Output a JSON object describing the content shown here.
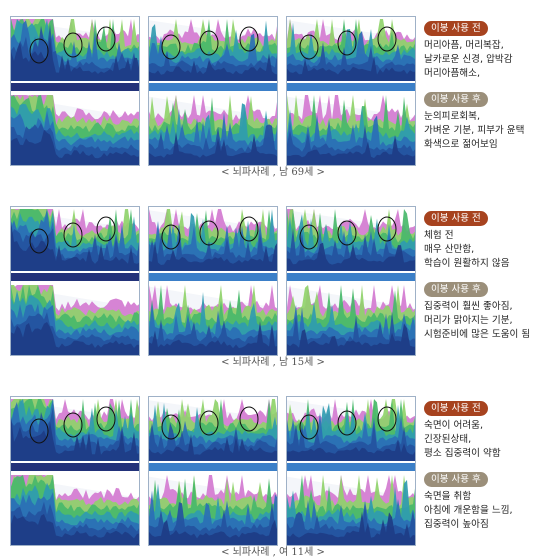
{
  "cases": [
    {
      "before_label": "이봉 사용 전",
      "before_text": "머리아픔, 머리복잡,\n날카로운 신경, 압박감\n머리아픔해소,",
      "after_label": "이봉 사용 후",
      "after_text": "눈의피로회복,\n가벼운 기분,  피부가 윤택\n화색으로 젊어보임",
      "caption": "< 뇌파사례 , 남 69세 >"
    },
    {
      "before_label": "이봉 사용 전",
      "before_text": "체험 전\n매우 산만함,\n학습이 원활하지 않음",
      "after_label": "이봉 사용 후",
      "after_text": "집중력이 훨씬 좋아짐,\n머리가 맑아지는 기분,\n시험준비에 많은 도움이 됨",
      "caption": "< 뇌파사례 , 남 15세 >"
    },
    {
      "before_label": "이봉 사용 전",
      "before_text": "숙면이 어려움,\n긴장된상태,\n평소 집중력이 약함",
      "after_label": "이봉 사용 후",
      "after_text": "숙면을 취함\n아침에 개운함을 느낌,\n집중력이 높아짐",
      "caption": "< 뇌파사례 , 여 11세 >"
    }
  ]
}
